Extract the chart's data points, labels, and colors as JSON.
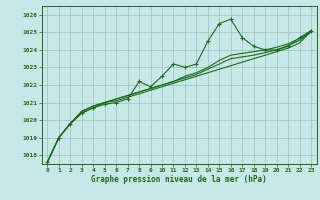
{
  "background_color": "#c8e8e8",
  "plot_bg_color": "#c8e8e8",
  "grid_color": "#a0c8c8",
  "line_color": "#1a6b1a",
  "title": "Graphe pression niveau de la mer (hPa)",
  "ylim": [
    1017.5,
    1026.5
  ],
  "xlim": [
    -0.5,
    23.5
  ],
  "yticks": [
    1018,
    1019,
    1020,
    1021,
    1022,
    1023,
    1024,
    1025,
    1026
  ],
  "xticks": [
    0,
    1,
    2,
    3,
    4,
    5,
    6,
    7,
    8,
    9,
    10,
    11,
    12,
    13,
    14,
    15,
    16,
    17,
    18,
    19,
    20,
    21,
    22,
    23
  ],
  "series1_x": [
    0,
    1,
    2,
    3,
    4,
    5,
    6,
    7,
    8,
    9,
    10,
    11,
    12,
    13,
    14,
    15,
    16,
    17,
    18,
    19,
    20,
    21,
    22,
    23
  ],
  "series1_y": [
    1017.6,
    1019.0,
    1019.8,
    1020.4,
    1020.7,
    1020.9,
    1021.0,
    1021.2,
    1022.2,
    1021.9,
    1022.5,
    1023.2,
    1023.0,
    1023.2,
    1024.5,
    1025.5,
    1025.75,
    1024.7,
    1024.2,
    1024.0,
    1024.0,
    1024.2,
    1024.7,
    1025.1
  ],
  "series2_x": [
    0,
    1,
    2,
    3,
    4,
    5,
    6,
    7,
    8,
    9,
    10,
    11,
    12,
    13,
    14,
    15,
    16,
    17,
    18,
    19,
    20,
    21,
    22,
    23
  ],
  "series2_y": [
    1017.6,
    1019.0,
    1019.8,
    1020.5,
    1020.8,
    1021.0,
    1021.1,
    1021.3,
    1021.5,
    1021.7,
    1021.9,
    1022.1,
    1022.3,
    1022.5,
    1022.7,
    1022.9,
    1023.1,
    1023.3,
    1023.5,
    1023.7,
    1023.9,
    1024.1,
    1024.4,
    1025.05
  ],
  "series3_x": [
    0,
    1,
    2,
    3,
    4,
    5,
    6,
    7,
    8,
    9,
    10,
    11,
    12,
    13,
    14,
    15,
    16,
    17,
    18,
    19,
    20,
    21,
    22,
    23
  ],
  "series3_y": [
    1017.6,
    1019.0,
    1019.8,
    1020.4,
    1020.7,
    1021.0,
    1021.2,
    1021.4,
    1021.6,
    1021.8,
    1022.0,
    1022.2,
    1022.4,
    1022.6,
    1022.9,
    1023.2,
    1023.5,
    1023.6,
    1023.7,
    1023.85,
    1024.0,
    1024.25,
    1024.55,
    1025.05
  ],
  "series4_x": [
    0,
    1,
    2,
    3,
    4,
    5,
    6,
    7,
    8,
    9,
    10,
    11,
    12,
    13,
    14,
    15,
    16,
    17,
    18,
    19,
    20,
    21,
    22,
    23
  ],
  "series4_y": [
    1017.6,
    1019.0,
    1019.8,
    1020.5,
    1020.8,
    1021.0,
    1021.2,
    1021.4,
    1021.6,
    1021.8,
    1022.0,
    1022.2,
    1022.5,
    1022.7,
    1023.0,
    1023.4,
    1023.7,
    1023.8,
    1023.9,
    1024.0,
    1024.15,
    1024.35,
    1024.65,
    1025.05
  ]
}
